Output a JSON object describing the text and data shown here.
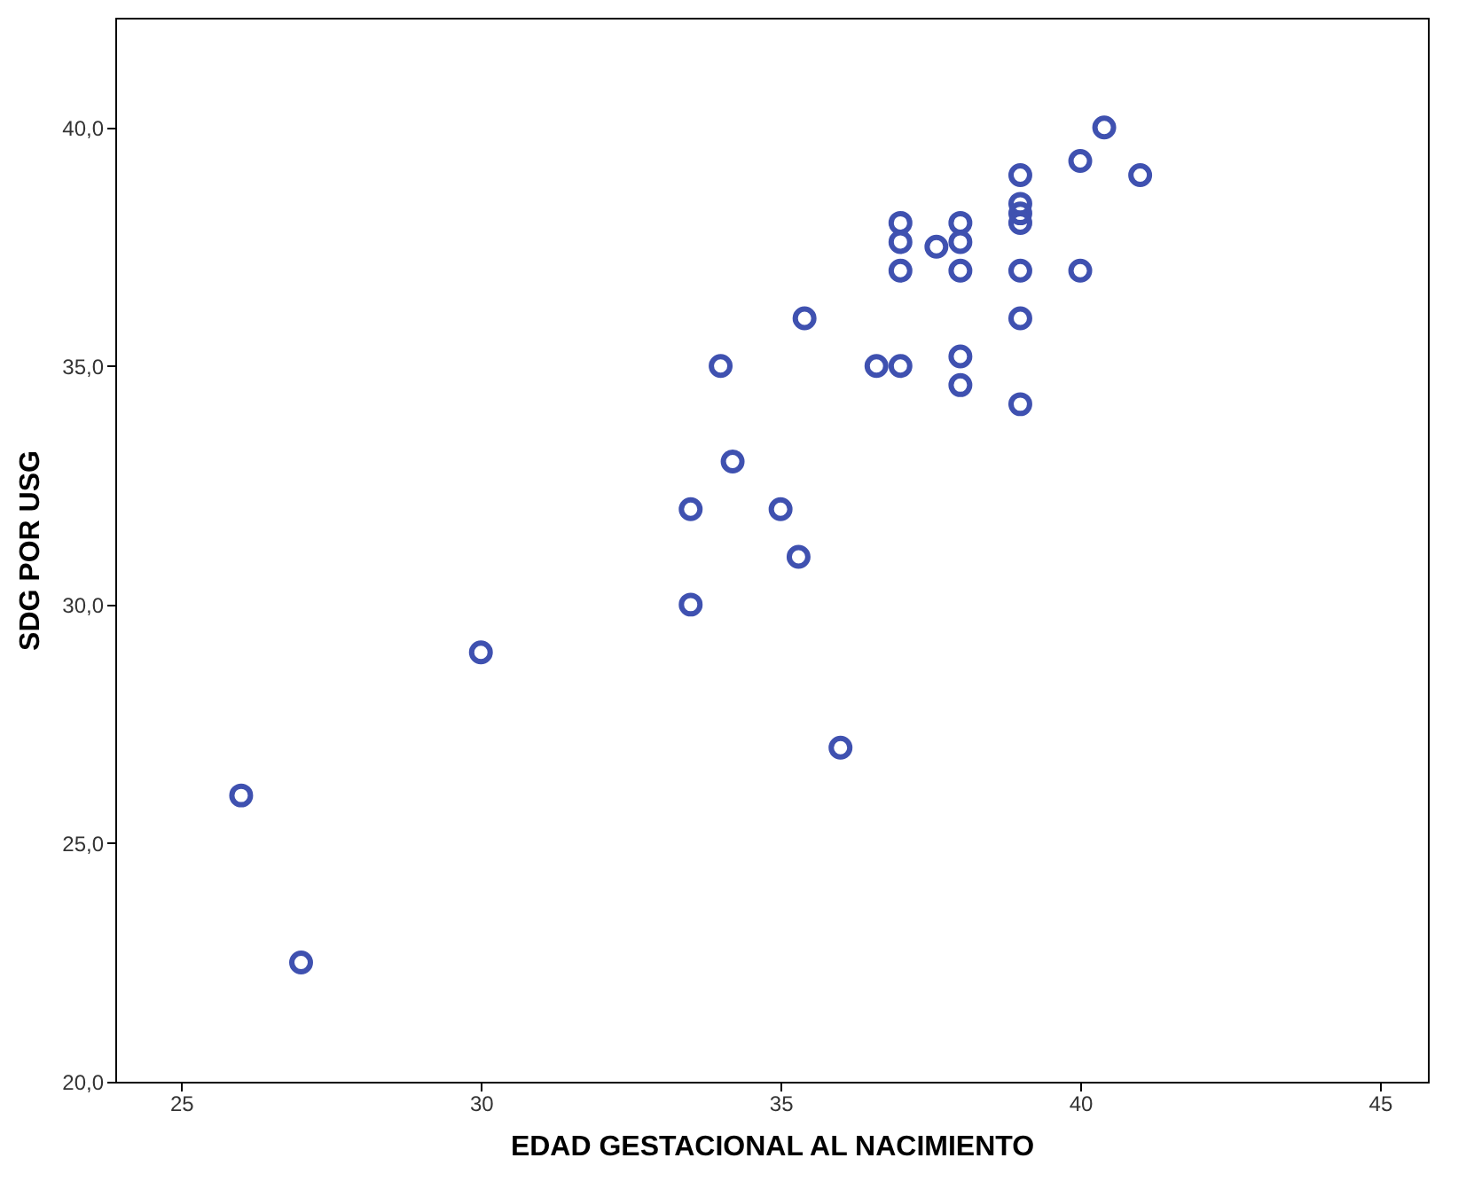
{
  "chart_data": {
    "type": "scatter",
    "xlabel": "EDAD GESTACIONAL AL NACIMIENTO",
    "ylabel": "SDG POR USG",
    "x": [
      26,
      27,
      30,
      33.5,
      33.5,
      34,
      34.2,
      35,
      35.3,
      35.4,
      36,
      36.6,
      37,
      37,
      37,
      37,
      37.6,
      38,
      38,
      38,
      38,
      38,
      39,
      39,
      39,
      39,
      39,
      39,
      39,
      40,
      40,
      40.4,
      41
    ],
    "series": [
      {
        "color": "#3f51b0",
        "values": [
          26,
          22.5,
          29,
          32,
          30,
          35,
          33,
          32,
          31,
          36,
          27,
          35,
          35,
          38,
          37.6,
          37,
          37.5,
          38,
          37.6,
          37,
          35.2,
          34.6,
          39,
          38.4,
          38.2,
          38,
          37,
          36,
          34.2,
          39.3,
          37,
          40,
          39
        ]
      }
    ],
    "marker": "circle",
    "grid": false,
    "xlim": [
      23.9,
      45.8
    ],
    "xticks": [
      25,
      30,
      35,
      40,
      45
    ],
    "ylim": [
      20,
      42.3
    ],
    "yticks": [
      {
        "value": 20,
        "label": "20,0"
      },
      {
        "value": 25,
        "label": "25,0"
      },
      {
        "value": 30,
        "label": "30,0"
      },
      {
        "value": 35,
        "label": "35,0"
      },
      {
        "value": 40,
        "label": "40,0"
      }
    ]
  }
}
